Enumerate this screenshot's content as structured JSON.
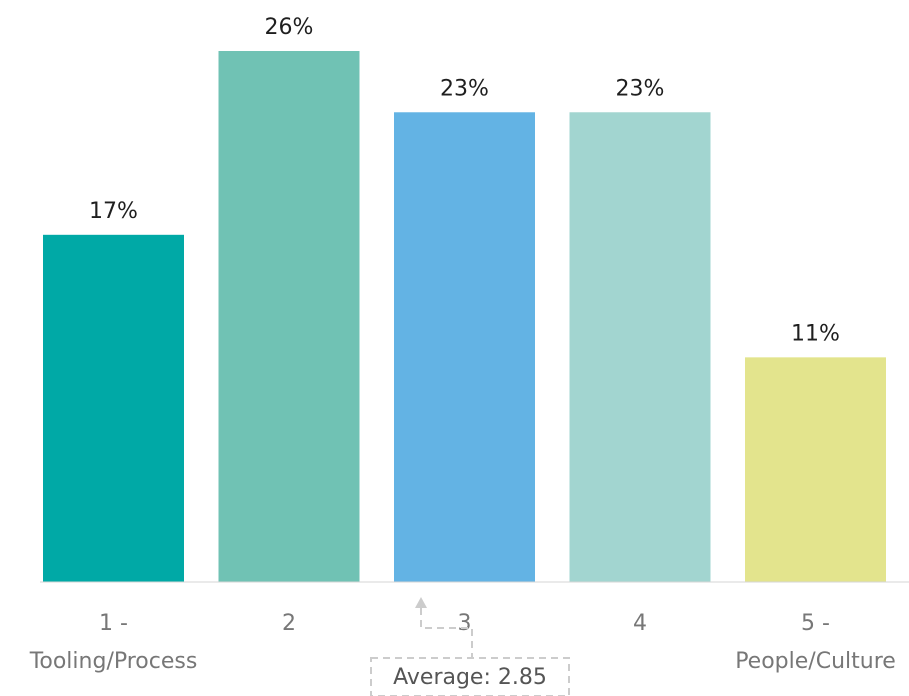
{
  "chart_data": {
    "type": "bar",
    "categories": [
      "1 - Tooling/Process",
      "2",
      "3",
      "4",
      "5 - People/Culture"
    ],
    "category_lines": [
      [
        "1 -",
        "Tooling/Process"
      ],
      [
        "2"
      ],
      [
        "3"
      ],
      [
        "4"
      ],
      [
        "5 -",
        "People/Culture"
      ]
    ],
    "values": [
      17,
      26,
      23,
      23,
      11
    ],
    "value_labels": [
      "17%",
      "26%",
      "23%",
      "23%",
      "11%"
    ],
    "colors": [
      "#00a9a6",
      "#70c2b4",
      "#63b3e4",
      "#a2d5d0",
      "#e3e48d"
    ],
    "ylim": [
      0,
      26
    ],
    "grid": false,
    "annotation": {
      "text": "Average: 2.85",
      "value": 2.85,
      "color": "#cccccc"
    }
  }
}
